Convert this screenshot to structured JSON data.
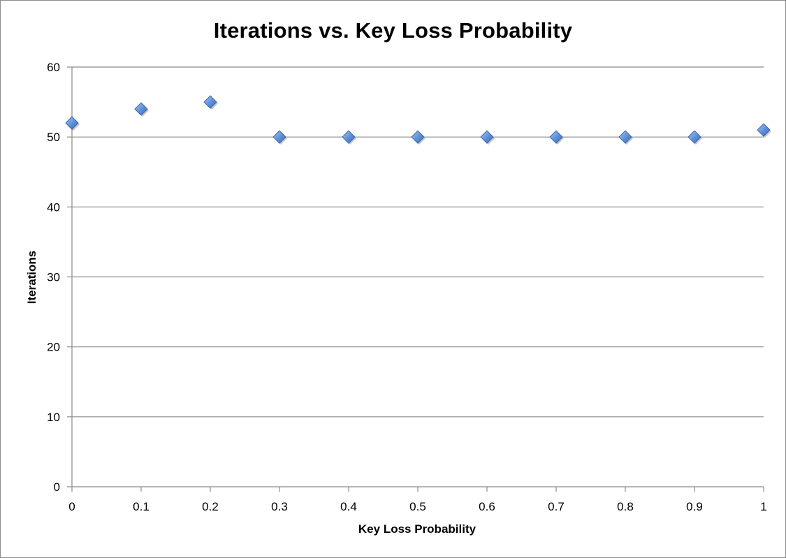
{
  "chart_data": {
    "type": "scatter",
    "title": "Iterations vs. Key Loss Probability",
    "xlabel": "Key Loss Probability",
    "ylabel": "Iterations",
    "xlim": [
      0,
      1
    ],
    "ylim": [
      0,
      60
    ],
    "x_ticks": [
      0,
      0.1,
      0.2,
      0.3,
      0.4,
      0.5,
      0.6,
      0.7,
      0.8,
      0.9,
      1
    ],
    "x_tick_labels": [
      "0",
      "0.1",
      "0.2",
      "0.3",
      "0.4",
      "0.5",
      "0.6",
      "0.7",
      "0.8",
      "0.9",
      "1"
    ],
    "y_ticks": [
      0,
      10,
      20,
      30,
      40,
      50,
      60
    ],
    "y_tick_labels": [
      "0",
      "10",
      "20",
      "30",
      "40",
      "50",
      "60"
    ],
    "grid": "horizontal",
    "legend": "none",
    "marker": "diamond",
    "marker_color": "#5b8ed6",
    "series": [
      {
        "x": [
          0,
          0.1,
          0.2,
          0.3,
          0.4,
          0.5,
          0.6,
          0.7,
          0.8,
          0.9,
          1
        ],
        "y": [
          52,
          54,
          55,
          50,
          50,
          50,
          50,
          50,
          50,
          50,
          51
        ]
      }
    ]
  }
}
